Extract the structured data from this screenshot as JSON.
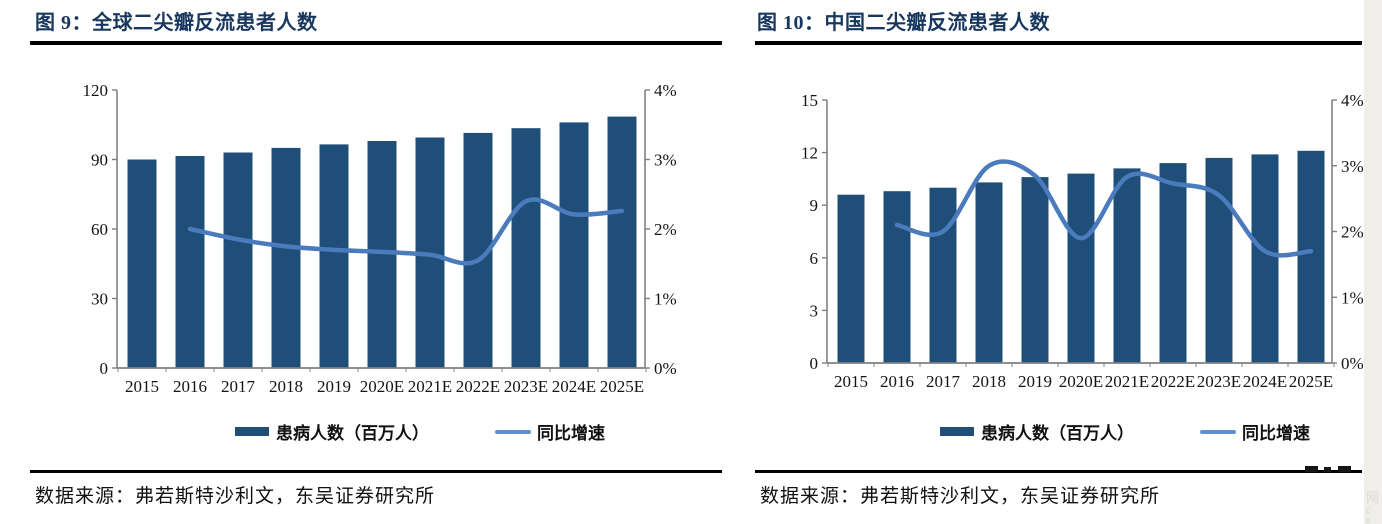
{
  "footer": {
    "source": "数据来源：弗若斯特沙利文，东吴证券研究所"
  },
  "colors": {
    "bar": "#1F4E79",
    "line": "#4A7BBD",
    "legend_line": "#5E90CE",
    "title": "#17375E",
    "axis": "#808080"
  },
  "watermark": {
    "glyph": "网",
    "sub": "c n"
  },
  "chart_data": [
    {
      "type": "bar",
      "title": "图 9：全球二尖瓣反流患者人数",
      "categories": [
        "2015",
        "2016",
        "2017",
        "2018",
        "2019",
        "2020E",
        "2021E",
        "2022E",
        "2023E",
        "2024E",
        "2025E"
      ],
      "series": [
        {
          "name": "患病人数（百万人）",
          "kind": "bar",
          "axis": "left",
          "values": [
            90,
            91.5,
            93,
            95,
            96.5,
            98,
            99.5,
            101.5,
            103.5,
            106,
            108.5
          ]
        },
        {
          "name": "同比增速",
          "kind": "line",
          "axis": "right",
          "values": [
            null,
            2.0,
            1.85,
            1.75,
            1.7,
            1.67,
            1.63,
            1.55,
            2.4,
            2.21,
            2.26
          ]
        }
      ],
      "left_axis": {
        "min": 0,
        "max": 120,
        "tick_labels": [
          "0",
          "30",
          "60",
          "90",
          "120"
        ]
      },
      "right_axis": {
        "min": 0,
        "max": 4,
        "tick_labels": [
          "0%",
          "1%",
          "2%",
          "3%",
          "4%"
        ]
      },
      "grid": false,
      "legend_position": "bottom"
    },
    {
      "type": "bar",
      "title": "图 10：中国二尖瓣反流患者人数",
      "categories": [
        "2015",
        "2016",
        "2017",
        "2018",
        "2019",
        "2020E",
        "2021E",
        "2022E",
        "2023E",
        "2024E",
        "2025E"
      ],
      "series": [
        {
          "name": "患病人数（百万人）",
          "kind": "bar",
          "axis": "left",
          "values": [
            9.6,
            9.8,
            10.0,
            10.3,
            10.6,
            10.8,
            11.1,
            11.4,
            11.7,
            11.9,
            12.1
          ]
        },
        {
          "name": "同比增速",
          "kind": "line",
          "axis": "right",
          "values": [
            null,
            2.1,
            2.0,
            3.0,
            2.85,
            1.9,
            2.83,
            2.73,
            2.55,
            1.7,
            1.7
          ]
        }
      ],
      "left_axis": {
        "min": 0,
        "max": 15,
        "tick_labels": [
          "0",
          "3",
          "6",
          "9",
          "12",
          "15"
        ]
      },
      "right_axis": {
        "min": 0,
        "max": 4,
        "tick_labels": [
          "0%",
          "1%",
          "2%",
          "3%",
          "4%"
        ]
      },
      "grid": false,
      "legend_position": "bottom"
    }
  ]
}
